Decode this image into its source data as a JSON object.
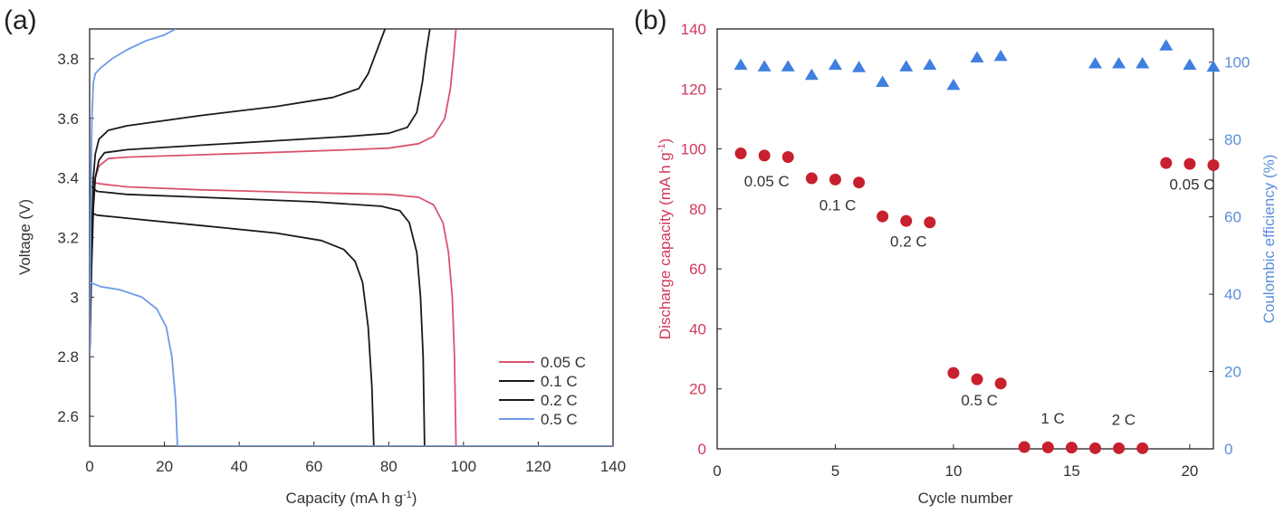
{
  "chart_data": [
    {
      "panel": "(a)",
      "type": "line",
      "xlabel": "Capacity (mA h g",
      "xlabel_sup": "-1",
      "xlabel_close": ")",
      "ylabel": "Voltage (V)",
      "xlim": [
        0,
        140
      ],
      "ylim": [
        2.5,
        3.9
      ],
      "xticks": [
        0,
        20,
        40,
        60,
        80,
        100,
        120,
        140
      ],
      "yticks": [
        2.6,
        2.8,
        3,
        3.2,
        3.4,
        3.6,
        3.8
      ],
      "ytick_labels": [
        "2.6",
        "2.8",
        "3",
        "3.2",
        "3.4",
        "3.6",
        "3.8"
      ],
      "legend_position": "bottom-right",
      "series": [
        {
          "name": "0.05 C",
          "color": "#d9546f",
          "charge": [
            [
              0,
              2.8
            ],
            [
              0.5,
              3.1
            ],
            [
              1,
              3.3
            ],
            [
              1.5,
              3.4
            ],
            [
              2.5,
              3.44
            ],
            [
              5,
              3.465
            ],
            [
              10,
              3.47
            ],
            [
              30,
              3.478
            ],
            [
              50,
              3.486
            ],
            [
              70,
              3.495
            ],
            [
              80,
              3.5
            ],
            [
              88,
              3.515
            ],
            [
              92,
              3.54
            ],
            [
              95,
              3.6
            ],
            [
              96.5,
              3.7
            ],
            [
              97.3,
              3.8
            ],
            [
              98,
              3.9
            ]
          ],
          "discharge": [
            [
              0,
              3.39
            ],
            [
              1,
              3.385
            ],
            [
              3,
              3.38
            ],
            [
              10,
              3.37
            ],
            [
              30,
              3.36
            ],
            [
              60,
              3.35
            ],
            [
              80,
              3.345
            ],
            [
              88,
              3.335
            ],
            [
              92,
              3.31
            ],
            [
              94.5,
              3.25
            ],
            [
              96,
              3.15
            ],
            [
              97,
              3.0
            ],
            [
              97.6,
              2.8
            ],
            [
              98,
              2.5
            ]
          ]
        },
        {
          "name": "0.1 C",
          "color": "#1a1a1a",
          "charge": [
            [
              0,
              2.8
            ],
            [
              0.5,
              3.1
            ],
            [
              1,
              3.3
            ],
            [
              1.5,
              3.4
            ],
            [
              2.5,
              3.46
            ],
            [
              4,
              3.485
            ],
            [
              10,
              3.495
            ],
            [
              30,
              3.51
            ],
            [
              50,
              3.525
            ],
            [
              70,
              3.54
            ],
            [
              80,
              3.55
            ],
            [
              85,
              3.57
            ],
            [
              87.5,
              3.62
            ],
            [
              89,
              3.72
            ],
            [
              90,
              3.82
            ],
            [
              91,
              3.9
            ]
          ],
          "discharge": [
            [
              0,
              3.375
            ],
            [
              2,
              3.355
            ],
            [
              10,
              3.345
            ],
            [
              30,
              3.335
            ],
            [
              60,
              3.32
            ],
            [
              78,
              3.305
            ],
            [
              83,
              3.29
            ],
            [
              85.5,
              3.25
            ],
            [
              87.5,
              3.15
            ],
            [
              88.5,
              3.0
            ],
            [
              89.2,
              2.8
            ],
            [
              89.6,
              2.5
            ]
          ]
        },
        {
          "name": "0.2 C",
          "color": "#1a1a1a",
          "charge": [
            [
              0,
              2.8
            ],
            [
              0.5,
              3.2
            ],
            [
              1,
              3.4
            ],
            [
              1.5,
              3.48
            ],
            [
              2.5,
              3.53
            ],
            [
              5,
              3.56
            ],
            [
              10,
              3.575
            ],
            [
              30,
              3.61
            ],
            [
              50,
              3.64
            ],
            [
              65,
              3.67
            ],
            [
              72,
              3.7
            ],
            [
              74.5,
              3.75
            ],
            [
              76,
              3.8
            ],
            [
              77.5,
              3.85
            ],
            [
              79,
              3.9
            ]
          ],
          "discharge": [
            [
              0,
              3.285
            ],
            [
              2,
              3.275
            ],
            [
              10,
              3.265
            ],
            [
              30,
              3.24
            ],
            [
              50,
              3.215
            ],
            [
              62,
              3.19
            ],
            [
              68,
              3.16
            ],
            [
              71,
              3.12
            ],
            [
              73,
              3.05
            ],
            [
              74.5,
              2.9
            ],
            [
              75.5,
              2.7
            ],
            [
              76,
              2.5
            ]
          ]
        },
        {
          "name": "0.5 C",
          "color": "#6e9be6",
          "charge": [
            [
              0,
              2.8
            ],
            [
              0.3,
              3.3
            ],
            [
              0.6,
              3.6
            ],
            [
              1,
              3.72
            ],
            [
              1.5,
              3.75
            ],
            [
              3,
              3.77
            ],
            [
              6,
              3.8
            ],
            [
              10,
              3.83
            ],
            [
              15,
              3.86
            ],
            [
              20,
              3.88
            ],
            [
              23,
              3.9
            ]
          ],
          "discharge": [
            [
              0,
              3.05
            ],
            [
              3,
              3.035
            ],
            [
              8,
              3.025
            ],
            [
              14,
              3.0
            ],
            [
              18,
              2.96
            ],
            [
              20.5,
              2.9
            ],
            [
              22,
              2.8
            ],
            [
              23,
              2.65
            ],
            [
              23.5,
              2.5
            ],
            [
              140,
              2.5
            ]
          ]
        }
      ]
    },
    {
      "panel": "(b)",
      "type": "scatter",
      "xlabel": "Cycle number",
      "ylabel": "Discharge capacity (mA h g",
      "ylabel_sup": "-1",
      "ylabel_close": ")",
      "y2label": "Coulombic efficiency (%)",
      "xlim": [
        0,
        21
      ],
      "ylim": [
        0,
        140
      ],
      "y2lim": [
        0,
        108.6
      ],
      "xticks": [
        0,
        5,
        10,
        15,
        20
      ],
      "yticks": [
        0,
        20,
        40,
        60,
        80,
        100,
        120,
        140
      ],
      "y2ticks": [
        0,
        20,
        40,
        60,
        80,
        100
      ],
      "series": [
        {
          "name": "Discharge capacity",
          "axis": "left",
          "color": "#c8202e",
          "x": [
            1,
            2,
            3,
            4,
            5,
            6,
            7,
            8,
            9,
            10,
            11,
            12,
            13,
            14,
            15,
            16,
            17,
            18,
            19,
            20,
            21
          ],
          "values": [
            98.5,
            97.8,
            97.3,
            90.2,
            89.8,
            88.8,
            77.5,
            76.0,
            75.5,
            25.3,
            23.2,
            21.8,
            0.6,
            0.5,
            0.4,
            0.2,
            0.2,
            0.2,
            95.3,
            95.0,
            94.6
          ]
        },
        {
          "name": "Coulombic efficiency",
          "axis": "right",
          "color": "#3f7fe0",
          "x": [
            1,
            2,
            3,
            4,
            5,
            6,
            7,
            8,
            9,
            10,
            11,
            12,
            16,
            17,
            18,
            19,
            20,
            21
          ],
          "values": [
            99.2,
            98.8,
            98.8,
            96.6,
            99.2,
            98.6,
            94.8,
            98.8,
            99.2,
            94.0,
            101.1,
            101.5,
            99.6,
            99.6,
            99.6,
            104.2,
            99.2,
            98.7
          ]
        }
      ],
      "annotations": [
        {
          "text": "0.05 C",
          "x": 2.1,
          "y": 87.5
        },
        {
          "text": "0.1 C",
          "x": 5.1,
          "y": 79.5
        },
        {
          "text": "0.2 C",
          "x": 8.1,
          "y": 67.5
        },
        {
          "text": "0.5 C",
          "x": 11.1,
          "y": 14.5
        },
        {
          "text": "1 C",
          "x": 14.2,
          "y": 8.5
        },
        {
          "text": "2 C",
          "x": 17.2,
          "y": 8.0
        },
        {
          "text": "0.05 C",
          "x": 20.1,
          "y": 86.5
        }
      ]
    }
  ]
}
